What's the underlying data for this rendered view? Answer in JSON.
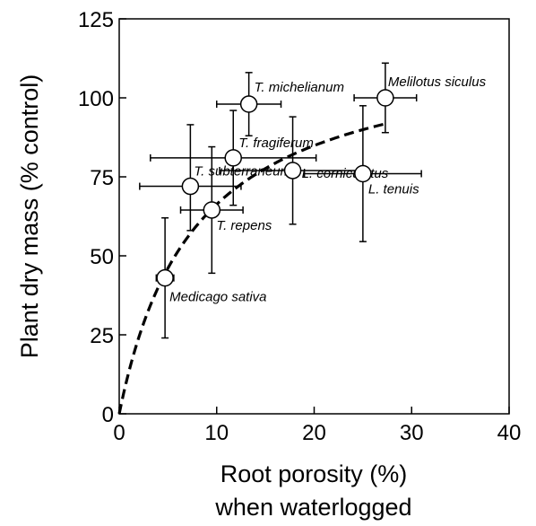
{
  "chart_data": {
    "type": "scatter",
    "title": "",
    "xlabel_lines": [
      "Root porosity (%)",
      "when waterlogged"
    ],
    "ylabel": "Plant dry mass (% control)",
    "xlim": [
      0,
      40
    ],
    "ylim": [
      0,
      125
    ],
    "xticks": [
      0,
      10,
      20,
      30,
      40
    ],
    "yticks": [
      0,
      25,
      50,
      75,
      100,
      125
    ],
    "grid": false,
    "points": [
      {
        "label": "Medicago sativa",
        "x": 4.7,
        "y": 43,
        "xerr": [
          0.9,
          0.9
        ],
        "yerr": [
          19,
          19
        ]
      },
      {
        "label": "T. subterraneum",
        "x": 7.3,
        "y": 72,
        "xerr": [
          5.2,
          5.2
        ],
        "yerr": [
          14,
          19.5
        ]
      },
      {
        "label": "T. repens",
        "x": 9.5,
        "y": 64.5,
        "xerr": [
          3.2,
          3.2
        ],
        "yerr": [
          20,
          20
        ]
      },
      {
        "label": "T. fragiferum",
        "x": 11.7,
        "y": 81,
        "xerr": [
          8.5,
          8.5
        ],
        "yerr": [
          15,
          15
        ]
      },
      {
        "label": "T. michelianum",
        "x": 13.3,
        "y": 98,
        "xerr": [
          3.3,
          3.3
        ],
        "yerr": [
          10,
          10
        ]
      },
      {
        "label": "L. corniculatus",
        "x": 17.8,
        "y": 77,
        "xerr": [
          7.5,
          7.5
        ],
        "yerr": [
          17,
          17
        ]
      },
      {
        "label": "L. tenuis",
        "x": 25,
        "y": 76,
        "xerr": [
          6,
          6
        ],
        "yerr": [
          21.5,
          21.5
        ]
      },
      {
        "label": "Melilotus siculus",
        "x": 27.3,
        "y": 100,
        "xerr": [
          3.2,
          3.2
        ],
        "yerr": [
          11,
          11
        ]
      }
    ],
    "fit_curve": {
      "style": "dashed",
      "x_range": [
        0,
        27.5
      ]
    }
  }
}
